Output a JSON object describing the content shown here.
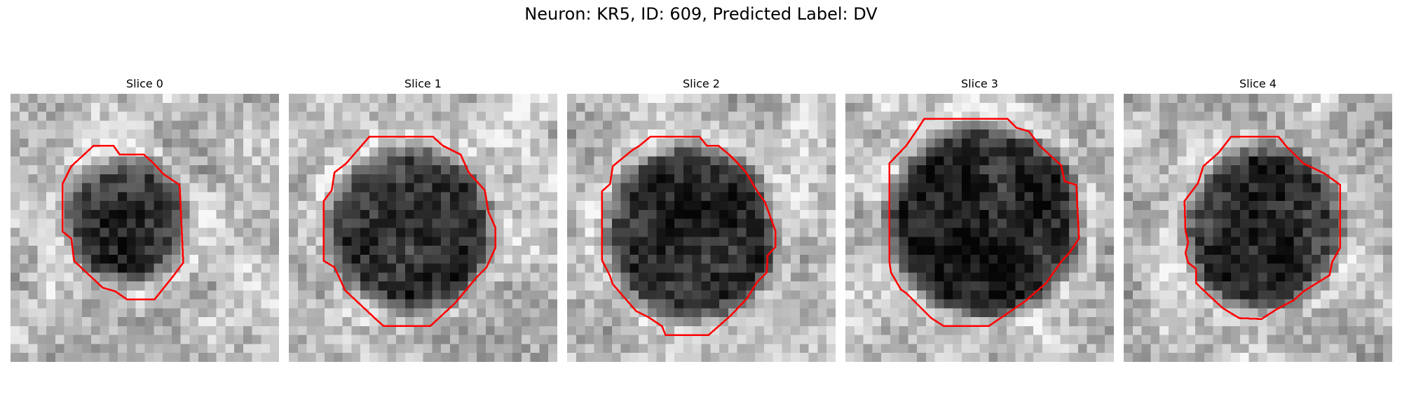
{
  "title": "Neuron: KR5, ID: 609, Predicted Label: DV",
  "colors": {
    "contour": "#ff0000",
    "background": "#ffffff"
  },
  "slices": [
    {
      "label": "Slice 0"
    },
    {
      "label": "Slice 1"
    },
    {
      "label": "Slice 2"
    },
    {
      "label": "Slice 3"
    },
    {
      "label": "Slice 4"
    }
  ]
}
